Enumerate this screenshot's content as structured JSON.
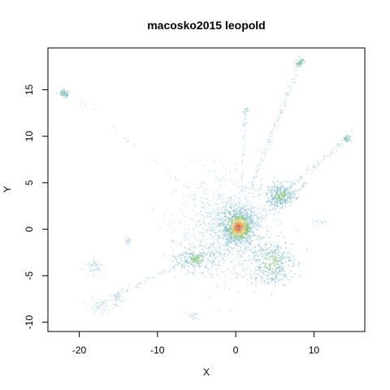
{
  "chart_data": {
    "type": "scatter",
    "title": "macosko2015 leopold",
    "xlabel": "X",
    "ylabel": "Y",
    "xlim": [
      -24,
      16.5
    ],
    "ylim": [
      -11,
      19.5
    ],
    "xticks": [
      -20,
      -10,
      0,
      10
    ],
    "yticks": [
      -10,
      -5,
      0,
      5,
      10,
      15
    ],
    "grid": false,
    "legend": "none",
    "colors": {
      "low": "#9ec9de",
      "mid": "#6fb3c8",
      "green": "#7fc37d",
      "yellow": "#e4d463",
      "orange": "#f0a858",
      "red": "#e26a4f"
    },
    "clusters": [
      {
        "name": "core",
        "x": 0.3,
        "y": 0.2,
        "sx": 1.1,
        "sy": 1.0,
        "n": 900,
        "density": "high"
      },
      {
        "name": "halo",
        "x": -1.0,
        "y": 0.0,
        "sx": 3.2,
        "sy": 2.6,
        "n": 900,
        "density": "low"
      },
      {
        "name": "upper-right-blob",
        "x": 5.8,
        "y": 3.6,
        "sx": 0.9,
        "sy": 0.6,
        "n": 260,
        "density": "mid"
      },
      {
        "name": "right-arc",
        "x": 4.5,
        "y": -3.6,
        "sx": 1.4,
        "sy": 1.2,
        "n": 330,
        "density": "mid"
      },
      {
        "name": "left-arm",
        "x": -5.0,
        "y": -3.2,
        "sx": 1.3,
        "sy": 0.6,
        "n": 200,
        "density": "mid"
      },
      {
        "name": "top-left-island",
        "x": -22.0,
        "y": 14.6,
        "sx": 0.35,
        "sy": 0.2,
        "n": 50,
        "density": "mid"
      },
      {
        "name": "top-island",
        "x": 8.2,
        "y": 17.9,
        "sx": 0.25,
        "sy": 0.25,
        "n": 45,
        "density": "mid"
      },
      {
        "name": "right-island",
        "x": 14.3,
        "y": 9.8,
        "sx": 0.3,
        "sy": 0.2,
        "n": 30,
        "density": "mid"
      },
      {
        "name": "lower-left-1",
        "x": -18.0,
        "y": -4.0,
        "sx": 0.6,
        "sy": 0.4,
        "n": 60,
        "density": "low"
      },
      {
        "name": "lower-left-2",
        "x": -15.2,
        "y": -7.6,
        "sx": 0.4,
        "sy": 0.4,
        "n": 40,
        "density": "low"
      },
      {
        "name": "lower-left-3",
        "x": -17.5,
        "y": -8.3,
        "sx": 0.8,
        "sy": 0.4,
        "n": 45,
        "density": "low"
      },
      {
        "name": "lower-left-4",
        "x": -13.8,
        "y": -1.3,
        "sx": 0.3,
        "sy": 0.3,
        "n": 25,
        "density": "low"
      },
      {
        "name": "bottom-spot",
        "x": -5.5,
        "y": -9.4,
        "sx": 0.4,
        "sy": 0.2,
        "n": 20,
        "density": "low"
      },
      {
        "name": "spot-1",
        "x": 1.3,
        "y": 12.7,
        "sx": 0.15,
        "sy": 0.15,
        "n": 10,
        "density": "mid"
      },
      {
        "name": "spot-2",
        "x": 10.8,
        "y": 0.8,
        "sx": 0.5,
        "sy": 0.15,
        "n": 15,
        "density": "low"
      }
    ],
    "streaks": [
      {
        "name": "streak-to-top-island",
        "from": [
          0.5,
          1.5
        ],
        "to": [
          8.2,
          17.8
        ],
        "n": 130
      },
      {
        "name": "streak-up",
        "from": [
          0.5,
          1.5
        ],
        "to": [
          1.3,
          12.5
        ],
        "n": 60
      },
      {
        "name": "streak-to-right-island",
        "from": [
          2.0,
          1.0
        ],
        "to": [
          14.3,
          9.8
        ],
        "n": 110
      },
      {
        "name": "streak-to-top-left",
        "from": [
          -2.0,
          1.5
        ],
        "to": [
          -20.5,
          14.0
        ],
        "n": 30
      },
      {
        "name": "streak-lower-left",
        "from": [
          -4.0,
          -2.5
        ],
        "to": [
          -17.5,
          -8.0
        ],
        "n": 80
      },
      {
        "name": "streak-mid-right",
        "from": [
          3.0,
          1.0
        ],
        "to": [
          9.0,
          5.0
        ],
        "n": 60
      }
    ]
  }
}
